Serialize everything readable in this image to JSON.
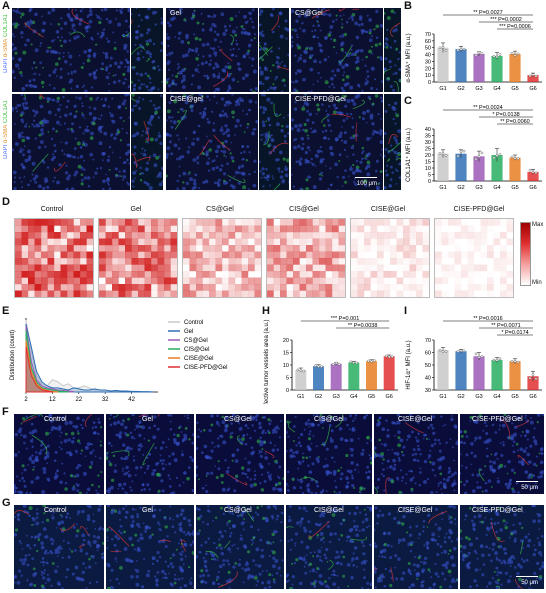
{
  "panels": {
    "A": "A",
    "B": "B",
    "C": "C",
    "D": "D",
    "E": "E",
    "F": "F",
    "G": "G",
    "H": "H",
    "I": "I"
  },
  "panelA": {
    "stains": [
      "DAPI",
      "α-SMA",
      "COL1A1"
    ],
    "groups_top": [
      "",
      "Gel",
      "CS@Gel"
    ],
    "groups_bottom": [
      "CIS@Gel",
      "CISE@gel",
      "CISE-PFD@Gel"
    ],
    "scale": "100 μm"
  },
  "panelB": {
    "ylabel": "α-SMA⁺ MFI (a.u.)",
    "sig": [
      {
        "stars": "**",
        "text": "P=0.0027"
      },
      {
        "stars": "***",
        "text": "P=0.0002"
      },
      {
        "stars": "***",
        "text": "P=0.0006"
      }
    ]
  },
  "panelC": {
    "ylabel": "COL1A1⁺ MFI (a.u.)",
    "sig": [
      {
        "stars": "**",
        "text": "P=0.0024"
      },
      {
        "stars": "*",
        "text": "P=0.0138"
      },
      {
        "stars": "**",
        "text": "P=0.0060"
      }
    ]
  },
  "panelD": {
    "titles": [
      "Control",
      "Gel",
      "CS@Gel",
      "CIS@Gel",
      "CISE@Gel",
      "CISE-PFD@Gel"
    ],
    "legend_max": "Max",
    "legend_min": "Min"
  },
  "panelE": {
    "ylabel": "Distribution (count)",
    "legend": [
      "Control",
      "Gel",
      "CS@Gel",
      "CIS@Gel",
      "CISE@Gel",
      "CISE-PFD@Gel"
    ]
  },
  "panelH": {
    "ylabel": "Effective tumor vessels area (a.u.)",
    "sig": [
      {
        "stars": "***",
        "text": "P=0.001"
      },
      {
        "stars": "**",
        "text": "P=0.0038"
      }
    ]
  },
  "panelI": {
    "ylabel": "HIF-1α⁺ MFI (a.u.)",
    "sig": [
      {
        "stars": "**",
        "text": "P=0.0016"
      },
      {
        "stars": "**",
        "text": "P=0.0071"
      },
      {
        "stars": "*",
        "text": "P=0.0174"
      }
    ]
  },
  "panelF": {
    "titles": [
      "Control",
      "Gel",
      "CS@Gel",
      "CIS@Gel",
      "CISE@Gel",
      "CISE-PFD@Gel"
    ],
    "scale": "50 μm"
  },
  "panelG": {
    "titles": [
      "Control",
      "Gel",
      "CS@Gel",
      "CIS@Gel",
      "CISE@Gel",
      "CISE-PFD@Gel"
    ],
    "scale": "50 μm"
  },
  "colors": {
    "G1": "#c8c8c8",
    "G2": "#2f6fb5",
    "G3": "#9b59b6",
    "G4": "#27ae60",
    "G5": "#e67e22",
    "G6": "#e03030"
  },
  "chart_data": [
    {
      "id": "B",
      "type": "bar",
      "categories": [
        "G1",
        "G2",
        "G3",
        "G4",
        "G5",
        "G6"
      ],
      "values": [
        50,
        48,
        41,
        38,
        41,
        10
      ],
      "errors": [
        7,
        4,
        3,
        5,
        4,
        3
      ],
      "ylabel": "α-SMA⁺ MFI (a.u.)",
      "ylim": [
        0,
        70
      ],
      "yticks": [
        0,
        10,
        20,
        30,
        40,
        50,
        60,
        70
      ]
    },
    {
      "id": "C",
      "type": "bar",
      "categories": [
        "G1",
        "G2",
        "G3",
        "G4",
        "G5",
        "G6"
      ],
      "values": [
        21,
        21,
        19,
        20,
        18,
        7
      ],
      "errors": [
        3,
        3,
        4,
        5,
        2,
        2
      ],
      "ylabel": "COL1A1⁺ MFI (a.u.)",
      "ylim": [
        0,
        40
      ],
      "yticks": [
        0,
        5,
        10,
        15,
        20,
        25,
        30,
        35,
        40
      ]
    },
    {
      "id": "H",
      "type": "bar",
      "categories": [
        "G1",
        "G2",
        "G3",
        "G4",
        "G5",
        "G6"
      ],
      "values": [
        8,
        9.5,
        10.5,
        11,
        11.5,
        13.5
      ],
      "errors": [
        0.8,
        0.6,
        0.5,
        0.5,
        0.6,
        0.5
      ],
      "ylabel": "Effective tumor vessels area (a.u.)",
      "ylim": [
        0,
        20
      ],
      "yticks": [
        0,
        5,
        10,
        15,
        20
      ]
    },
    {
      "id": "I",
      "type": "bar",
      "categories": [
        "G1",
        "G2",
        "G3",
        "G4",
        "G5",
        "G6"
      ],
      "values": [
        62,
        61,
        57,
        54,
        53,
        41
      ],
      "errors": [
        2,
        1.5,
        3,
        2,
        2,
        4
      ],
      "ylabel": "HIF-1α⁺ MFI (a.u.)",
      "ylim": [
        30,
        70
      ],
      "yticks": [
        30,
        40,
        50,
        60,
        70
      ]
    },
    {
      "id": "E",
      "type": "line",
      "xlim": [
        2,
        52
      ],
      "xticks": [
        2,
        12,
        22,
        32,
        42
      ],
      "ylabel": "Distribution (count)",
      "series": [
        {
          "name": "Control",
          "x": [
            2,
            4,
            6,
            8,
            10,
            12,
            14,
            16,
            18,
            20,
            22,
            24,
            26,
            28,
            30,
            32,
            34,
            36,
            38,
            40,
            42
          ],
          "y": [
            35,
            20,
            8,
            4,
            3,
            6,
            5,
            3,
            4,
            2,
            2,
            3,
            2,
            1,
            1,
            1,
            0.5,
            0.5,
            0.3,
            0.3,
            0.2
          ]
        },
        {
          "name": "Gel",
          "x": [
            2,
            4,
            6,
            8,
            10,
            12,
            14,
            16,
            18,
            20,
            22,
            24,
            26,
            28,
            30,
            32,
            34,
            36,
            38,
            40,
            42,
            44,
            46,
            48,
            50
          ],
          "y": [
            33,
            22,
            10,
            5,
            3,
            2,
            2,
            1.5,
            1,
            2,
            1.5,
            1,
            1,
            1.5,
            1,
            1,
            0.5,
            0.8,
            0.5,
            0.5,
            0.3,
            0.3,
            0.2,
            0.2,
            0.1
          ]
        },
        {
          "name": "CS@Gel",
          "x": [
            2,
            4,
            6,
            8,
            10,
            12,
            14,
            16,
            18,
            20
          ],
          "y": [
            32,
            15,
            6,
            3,
            2,
            1.5,
            1,
            0.8,
            0.5,
            0.2
          ]
        },
        {
          "name": "CIS@Gel",
          "x": [
            2,
            4,
            6,
            8,
            10,
            12,
            14,
            16,
            18
          ],
          "y": [
            30,
            12,
            5,
            2,
            1.5,
            1,
            0.5,
            0.3,
            0.1
          ]
        },
        {
          "name": "CISE@Gel",
          "x": [
            2,
            4,
            6,
            8,
            10,
            12,
            14
          ],
          "y": [
            25,
            10,
            4,
            1.5,
            0.8,
            0.3,
            0.1
          ]
        },
        {
          "name": "CISE-PFD@Gel",
          "x": [
            2,
            4,
            6,
            8,
            10,
            12
          ],
          "y": [
            22,
            8,
            3,
            1,
            0.5,
            0.1
          ]
        }
      ]
    }
  ]
}
